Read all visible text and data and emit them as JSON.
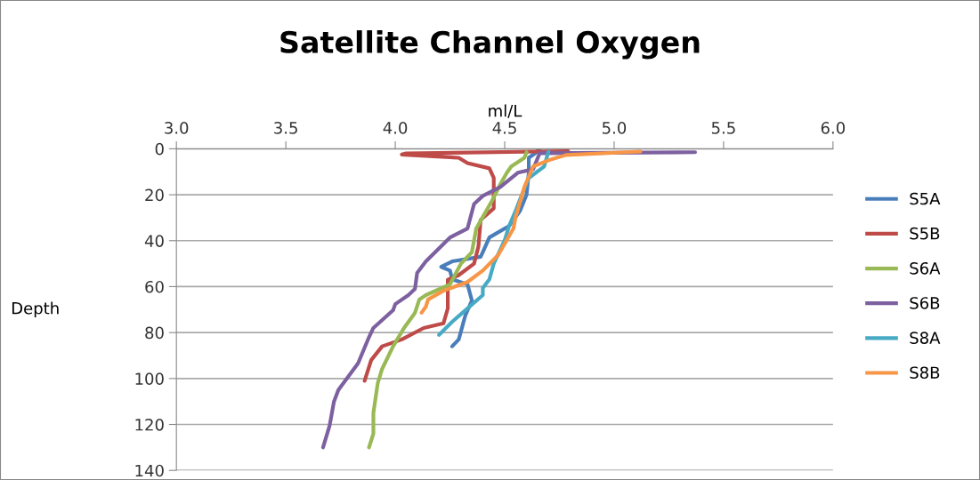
{
  "chart_data": {
    "type": "line",
    "title": "Satellite Channel Oxygen",
    "xlabel": "ml/L",
    "ylabel": "Depth",
    "xlim": [
      3,
      6
    ],
    "xticks": [
      {
        "value": 3,
        "label": "3.0"
      },
      {
        "value": 3.5,
        "label": "3.5"
      },
      {
        "value": 4,
        "label": "4.0"
      },
      {
        "value": 4.5,
        "label": "4.5"
      },
      {
        "value": 5,
        "label": "5.0"
      },
      {
        "value": 5.5,
        "label": "5.5"
      },
      {
        "value": 6,
        "label": "6.0"
      }
    ],
    "ylim": [
      140,
      0
    ],
    "yticks": [
      0,
      20,
      40,
      60,
      80,
      100,
      120,
      140
    ],
    "grid": "y",
    "legend": "right",
    "marker": "none",
    "line_style": "solid",
    "series": [
      {
        "name": "S5A",
        "color": "#4a7ebb",
        "x": [
          4.66,
          4.64,
          4.61,
          4.61,
          4.6,
          4.57,
          4.52,
          4.43,
          4.4,
          4.39,
          4.26,
          4.21,
          4.25,
          4.26,
          4.33,
          4.35,
          4.32,
          4.29,
          4.26
        ],
        "values": [
          0,
          1.9,
          3.9,
          10.4,
          20,
          27,
          33.6,
          38.6,
          45,
          47,
          49,
          51.4,
          53,
          56.8,
          59,
          66,
          72.6,
          83,
          86
        ]
      },
      {
        "name": "S5B",
        "color": "#be4b48",
        "x": [
          4.79,
          4.05,
          4.03,
          4.29,
          4.33,
          4.43,
          4.45,
          4.45,
          4.39,
          4.38,
          4.36,
          4.29,
          4.24,
          4.24,
          4.22,
          4.13,
          4.03,
          3.94,
          3.89,
          3.86
        ],
        "values": [
          1,
          2,
          2.5,
          3.9,
          6.2,
          8.5,
          12.7,
          25.9,
          31,
          42.5,
          50,
          55,
          57,
          69.5,
          76,
          78,
          83,
          86,
          92,
          101
        ]
      },
      {
        "name": "S6A",
        "color": "#98b954",
        "x": [
          4.6,
          4.59,
          4.53,
          4.51,
          4.48,
          4.44,
          4.4,
          4.37,
          4.35,
          4.3,
          4.25,
          4.14,
          4.11,
          4.09,
          4.04,
          3.99,
          3.94,
          3.92,
          3.9,
          3.9,
          3.88
        ],
        "values": [
          1.5,
          3.9,
          7.7,
          10.4,
          15.4,
          23,
          29.7,
          34.7,
          45,
          50,
          59,
          63.7,
          65.6,
          71.4,
          78,
          86,
          95.8,
          102,
          115,
          124,
          130
        ]
      },
      {
        "name": "S6B",
        "color": "#7d60a0",
        "x": [
          5.37,
          4.66,
          4.63,
          4.56,
          4.51,
          4.48,
          4.4,
          4.36,
          4.33,
          4.25,
          4.14,
          4.1,
          4.09,
          4.06,
          4.0,
          3.99,
          3.9,
          3.88,
          3.83,
          3.74,
          3.72,
          3.7,
          3.67
        ],
        "values": [
          1.5,
          1.9,
          8.9,
          10.4,
          14.3,
          16.6,
          20.5,
          24,
          34.7,
          38.6,
          49,
          54,
          61,
          63.7,
          67.6,
          70.3,
          78,
          82,
          93.4,
          105,
          110,
          120.5,
          130
        ]
      },
      {
        "name": "S8A",
        "color": "#46aac5",
        "x": [
          4.7,
          4.68,
          4.61,
          4.57,
          4.55,
          4.52,
          4.5,
          4.45,
          4.43,
          4.4,
          4.4,
          4.32,
          4.26,
          4.2
        ],
        "values": [
          1.2,
          7.7,
          12.7,
          22,
          27,
          33.6,
          39.8,
          50,
          56.8,
          60.6,
          63.7,
          70.3,
          75.3,
          81
        ]
      },
      {
        "name": "S8B",
        "color": "#f79646",
        "x": [
          5.12,
          4.78,
          4.7,
          4.63,
          4.59,
          4.55,
          4.54,
          4.47,
          4.4,
          4.33,
          4.22,
          4.15,
          4.14,
          4.12
        ],
        "values": [
          1.2,
          2.7,
          5,
          7.7,
          16.6,
          29.7,
          34.7,
          46.3,
          53,
          58,
          61.8,
          65.6,
          68.7,
          71.4
        ]
      }
    ]
  }
}
